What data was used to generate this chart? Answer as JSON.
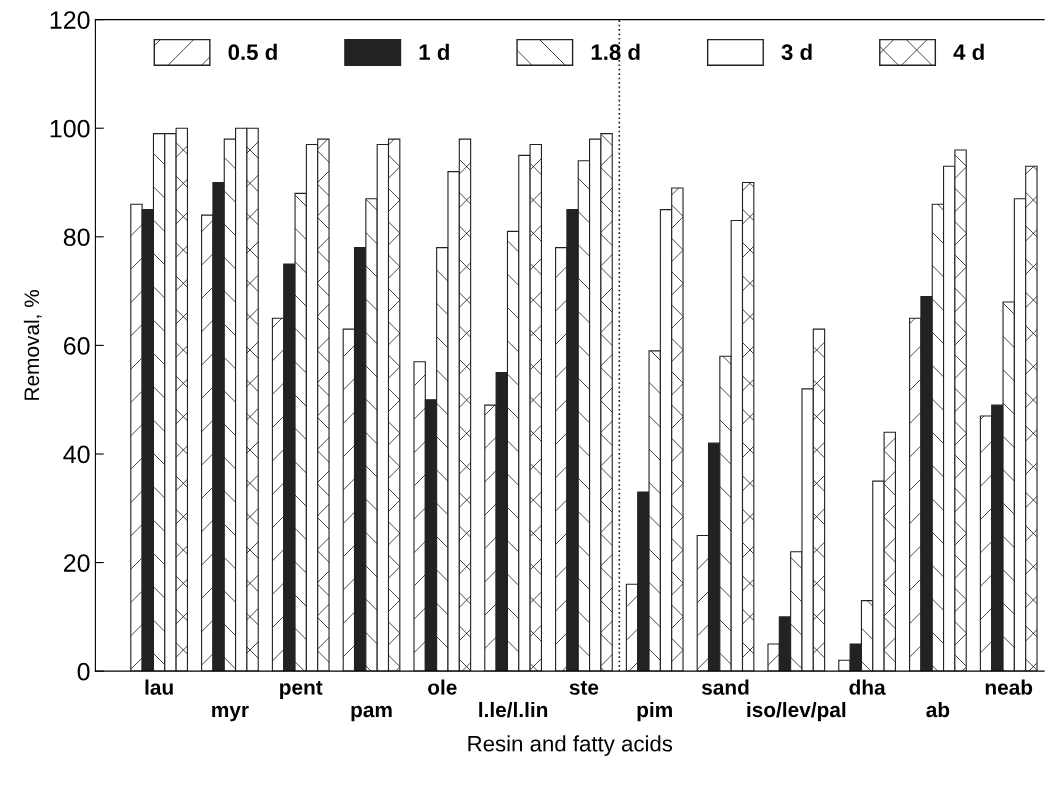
{
  "chart_data": {
    "type": "bar",
    "xlabel": "Resin and fatty acids",
    "ylabel": "Removal, %",
    "categories": [
      "lau",
      "myr",
      "pent",
      "pam",
      "ole",
      "l.le/l.lin",
      "ste",
      "pim",
      "sand",
      "iso/lev/pal",
      "dha",
      "ab",
      "neab"
    ],
    "series": [
      {
        "name": "0.5 d",
        "color": "#222222",
        "values": [
          86,
          84,
          65,
          63,
          57,
          49,
          78,
          16,
          25,
          5,
          2,
          65,
          47
        ]
      },
      {
        "name": "1 d",
        "color": "#222222",
        "values": [
          85,
          90,
          75,
          78,
          50,
          55,
          85,
          33,
          42,
          10,
          5,
          69,
          49
        ]
      },
      {
        "name": "1.8 d",
        "color": "#222222",
        "values": [
          99,
          98,
          88,
          87,
          78,
          81,
          94,
          59,
          58,
          22,
          13,
          86,
          68
        ]
      },
      {
        "name": "3 d",
        "color": "#ffffff",
        "values": [
          99,
          100,
          97,
          97,
          92,
          95,
          98,
          85,
          83,
          52,
          35,
          93,
          87
        ]
      },
      {
        "name": "4 d",
        "color": "#222222",
        "values": [
          100,
          100,
          98,
          98,
          98,
          97,
          99,
          89,
          90,
          63,
          44,
          96,
          93
        ]
      }
    ],
    "ylim": [
      0,
      120
    ],
    "yticks": [
      0,
      20,
      40,
      60,
      80,
      100,
      120
    ],
    "grid": false,
    "legend": "top"
  }
}
